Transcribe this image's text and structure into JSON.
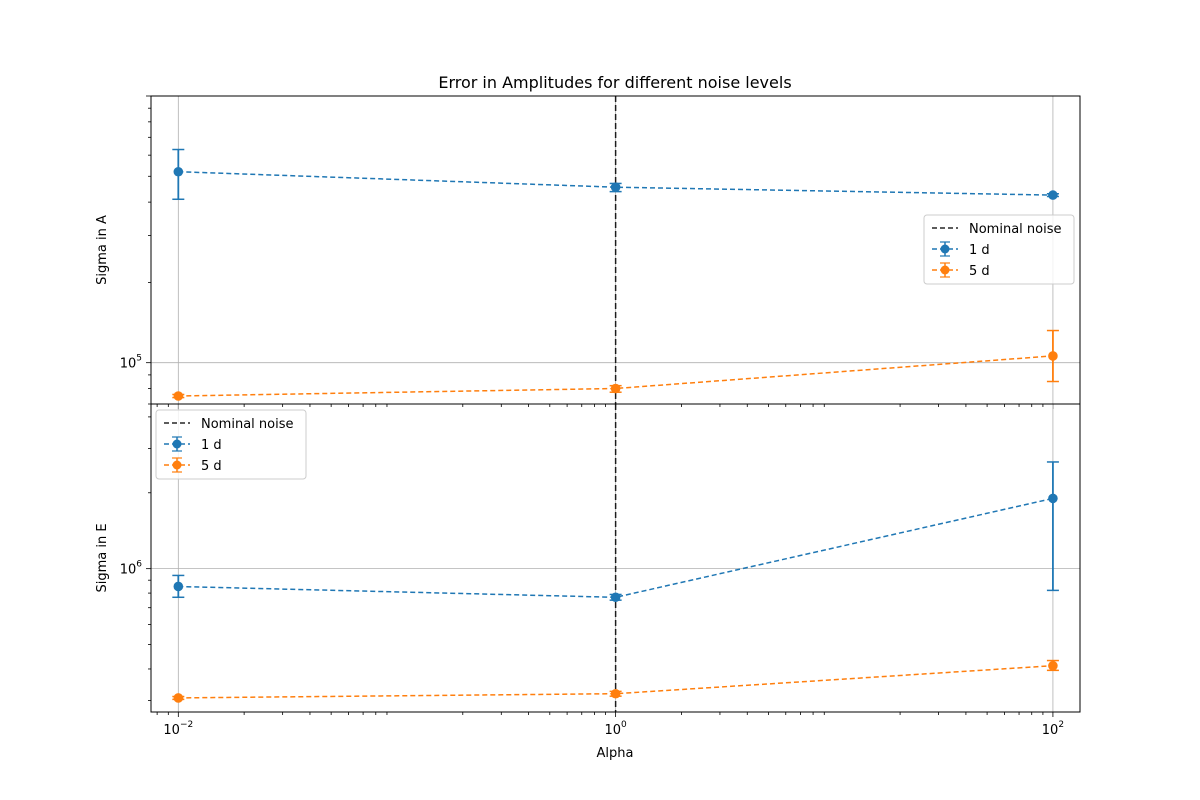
{
  "figure": {
    "title": "Error in Amplitudes for different noise levels",
    "xlabel": "Alpha"
  },
  "colors": {
    "series_1d": "#1f77b4",
    "series_5d": "#ff7f0e",
    "nominal": "#000000"
  },
  "chart_data": [
    {
      "type": "line",
      "title": "Error in Amplitudes for different noise levels",
      "xlabel": "",
      "ylabel": "Sigma in A",
      "xscale": "log",
      "yscale": "log",
      "xlim": [
        0.0075,
        133
      ],
      "ylim": [
        70000,
        1000000
      ],
      "x_tick_labels": [],
      "y_tick_labels": [
        {
          "value": 100000,
          "base": "10",
          "exp": "5"
        }
      ],
      "grid": true,
      "legend_position": "center-right",
      "vline": {
        "x": 1,
        "label": "Nominal noise",
        "style": "dashed"
      },
      "series": [
        {
          "name": "1 d",
          "color": "#1f77b4",
          "x": [
            0.01,
            1,
            100
          ],
          "y": [
            520000,
            455000,
            425000
          ],
          "err_low": [
            410000,
            438000,
            420000
          ],
          "err_high": [
            630000,
            470000,
            430000
          ]
        },
        {
          "name": "5 d",
          "color": "#ff7f0e",
          "x": [
            0.01,
            1,
            100
          ],
          "y": [
            75000,
            80000,
            106000
          ],
          "err_low": [
            74000,
            77500,
            85000
          ],
          "err_high": [
            76000,
            82000,
            132000
          ]
        }
      ]
    },
    {
      "type": "line",
      "title": "",
      "xlabel": "Alpha",
      "ylabel": "Sigma in E",
      "xscale": "log",
      "yscale": "log",
      "xlim": [
        0.0075,
        133
      ],
      "ylim": [
        270000,
        4500000
      ],
      "x_tick_labels": [
        {
          "value": 0.01,
          "base": "10",
          "exp": "−2"
        },
        {
          "value": 1,
          "base": "10",
          "exp": "0"
        },
        {
          "value": 100,
          "base": "10",
          "exp": "2"
        }
      ],
      "y_tick_labels": [
        {
          "value": 1000000,
          "base": "10",
          "exp": "6"
        }
      ],
      "grid": true,
      "legend_position": "upper-left",
      "vline": {
        "x": 1,
        "label": "Nominal noise",
        "style": "dashed"
      },
      "series": [
        {
          "name": "1 d",
          "color": "#1f77b4",
          "x": [
            0.01,
            1,
            100
          ],
          "y": [
            850000,
            770000,
            1900000
          ],
          "err_low": [
            770000,
            750000,
            820000
          ],
          "err_high": [
            940000,
            790000,
            2650000
          ]
        },
        {
          "name": "5 d",
          "color": "#ff7f0e",
          "x": [
            0.01,
            1,
            100
          ],
          "y": [
            307000,
            319000,
            412000
          ],
          "err_low": [
            303000,
            312000,
            395000
          ],
          "err_high": [
            311000,
            326000,
            432000
          ]
        }
      ]
    }
  ]
}
